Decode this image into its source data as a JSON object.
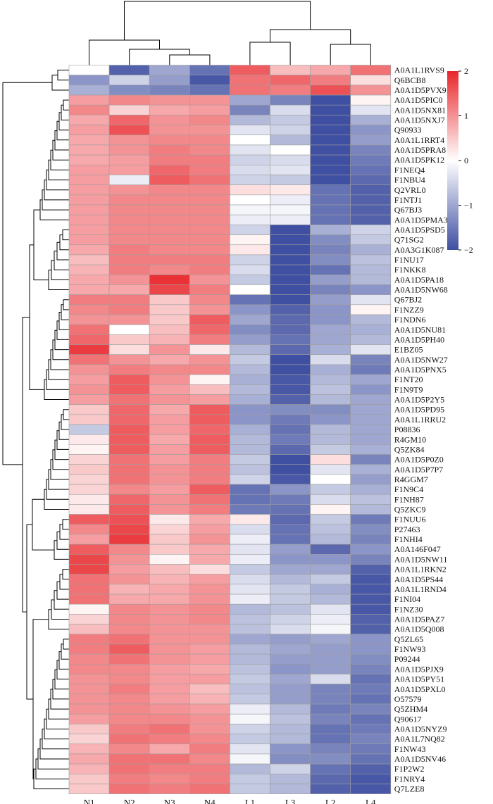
{
  "chart_data": {
    "type": "heatmap",
    "title": "",
    "columns": [
      "N1",
      "N2",
      "N3",
      "N4",
      "L1",
      "L3",
      "L2",
      "L4"
    ],
    "rows": [
      "A0A1L1RVS9",
      "Q6BCB8",
      "A0A1D5PVX9",
      "A0A1D5PIC0",
      "A0A1D5NX81",
      "A0A1D5NXJ7",
      "Q90933",
      "A0A1L1RRT4",
      "A0A1D5PRA8",
      "A0A1D5PK12",
      "F1NEQ4",
      "F1NBU4",
      "Q2VRL0",
      "F1NTJ1",
      "Q67BJ3",
      "A0A1D5PMA3",
      "A0A1D5PSD5",
      "Q71SG2",
      "A0A3G1K087",
      "F1NU17",
      "F1NKK8",
      "A0A1D5PA18",
      "A0A1D5NW68",
      "Q67BJ2",
      "F1NZZ9",
      "F1NDN6",
      "A0A1D5NU81",
      "A0A1D5PH40",
      "E1BZ05",
      "A0A1D5NW27",
      "A0A1D5PNX5",
      "F1NT20",
      "F1N9T9",
      "A0A1D5P2Y5",
      "A0A1D5PD95",
      "A0A1L1RRU2",
      "P08836",
      "R4GM10",
      "Q5ZK84",
      "A0A1D5P0Z0",
      "A0A1D5P7P7",
      "R4GGM7",
      "F1N9C4",
      "F1NH87",
      "Q5ZKC9",
      "F1NUU6",
      "P27463",
      "F1NHI4",
      "A0A146F047",
      "A0A1D5NW11",
      "A0A1L1RKN2",
      "A0A1D5PS44",
      "A0A1L1RND4",
      "F1NI04",
      "F1NZ30",
      "A0A1D5PAZ7",
      "A0A1D5Q008",
      "Q5ZL65",
      "F1NW93",
      "P09244",
      "A0A1D5PJX9",
      "A0A1D5PY51",
      "A0A1D5PXL0",
      "O57579",
      "Q5ZHM4",
      "Q90617",
      "A0A1D5NYZ9",
      "A0A1L7NQ82",
      "F1NW43",
      "A0A1D5NV46",
      "F1P2W2",
      "F1NRY4",
      "Q7LZE8"
    ],
    "values": [
      [
        0.0,
        -1.8,
        -1.0,
        -1.6,
        1.5,
        0.6,
        0.8,
        1.3
      ],
      [
        -1.2,
        -0.5,
        -1.1,
        -1.9,
        1.3,
        1.4,
        1.2,
        0.3
      ],
      [
        -0.9,
        -1.3,
        -1.4,
        -1.6,
        1.3,
        1.2,
        1.6,
        1.0
      ],
      [
        0.9,
        1.1,
        1.0,
        1.0,
        -1.0,
        -1.4,
        -2.0,
        0.1
      ],
      [
        1.1,
        0.4,
        0.8,
        0.9,
        -1.4,
        -0.4,
        -2.0,
        -0.3
      ],
      [
        0.8,
        1.4,
        1.0,
        1.1,
        -0.8,
        -0.6,
        -2.0,
        -0.9
      ],
      [
        0.9,
        1.6,
        1.0,
        1.0,
        -0.3,
        -0.5,
        -2.0,
        -1.2
      ],
      [
        0.8,
        1.0,
        1.1,
        1.1,
        0.0,
        -0.8,
        -2.0,
        -1.1
      ],
      [
        0.8,
        1.0,
        1.2,
        1.1,
        -0.3,
        0.0,
        -2.0,
        -1.4
      ],
      [
        0.8,
        0.9,
        1.2,
        1.2,
        -0.5,
        -0.4,
        -2.0,
        -1.5
      ],
      [
        0.9,
        0.9,
        1.4,
        1.2,
        -0.4,
        -0.3,
        -2.0,
        -1.6
      ],
      [
        0.9,
        -0.2,
        1.5,
        1.3,
        -0.5,
        -0.6,
        -2.0,
        -1.7
      ],
      [
        0.9,
        1.0,
        1.1,
        1.1,
        0.3,
        0.2,
        -1.6,
        -1.8
      ],
      [
        0.9,
        1.1,
        1.1,
        1.1,
        0.0,
        -0.2,
        -1.6,
        -1.8
      ],
      [
        0.9,
        1.1,
        1.1,
        1.1,
        -0.1,
        -0.1,
        -1.6,
        -1.8
      ],
      [
        0.9,
        1.1,
        1.1,
        1.1,
        -0.2,
        -0.2,
        -1.6,
        -1.8
      ],
      [
        0.9,
        1.1,
        1.1,
        1.1,
        -0.5,
        -2.0,
        -0.9,
        -0.5
      ],
      [
        0.9,
        1.1,
        1.1,
        1.1,
        0.1,
        -2.0,
        -1.3,
        -0.6
      ],
      [
        0.8,
        1.2,
        1.1,
        1.1,
        0.2,
        -2.0,
        -1.4,
        -0.9
      ],
      [
        0.6,
        1.2,
        1.2,
        1.2,
        -0.5,
        -2.0,
        -1.3,
        -0.7
      ],
      [
        0.7,
        1.2,
        1.1,
        1.2,
        -0.4,
        -2.0,
        -1.6,
        -0.8
      ],
      [
        0.8,
        1.0,
        1.9,
        1.0,
        -0.6,
        -2.0,
        -1.1,
        -0.8
      ],
      [
        0.8,
        0.8,
        1.7,
        1.2,
        0.0,
        -2.0,
        -1.4,
        -1.2
      ],
      [
        1.2,
        1.2,
        0.5,
        1.1,
        -1.6,
        -2.0,
        -1.1,
        -0.3
      ],
      [
        1.1,
        1.2,
        0.5,
        1.0,
        -1.2,
        -1.8,
        -1.2,
        0.1
      ],
      [
        1.0,
        1.0,
        0.5,
        1.5,
        -1.0,
        -1.7,
        -1.2,
        -0.8
      ],
      [
        1.3,
        0.0,
        0.6,
        1.4,
        -1.3,
        -1.7,
        -1.0,
        -0.9
      ],
      [
        1.4,
        0.5,
        0.7,
        1.2,
        -1.1,
        -1.6,
        -1.0,
        -0.8
      ],
      [
        1.8,
        0.3,
        1.0,
        0.2,
        -0.8,
        -1.7,
        -0.9,
        -0.3
      ],
      [
        1.3,
        1.0,
        0.8,
        1.0,
        -0.6,
        -2.0,
        -0.4,
        -1.4
      ],
      [
        1.0,
        1.2,
        1.1,
        1.1,
        -0.8,
        -2.0,
        -0.9,
        -1.5
      ],
      [
        0.9,
        1.5,
        1.0,
        0.1,
        -0.9,
        -1.9,
        -0.8,
        -1.0
      ],
      [
        1.0,
        1.5,
        0.9,
        0.6,
        -0.8,
        -1.9,
        -0.7,
        -1.2
      ],
      [
        0.9,
        1.3,
        1.0,
        0.9,
        -0.9,
        -1.8,
        -0.8,
        -1.0
      ],
      [
        0.5,
        1.4,
        0.8,
        1.5,
        -1.2,
        -1.3,
        -1.3,
        -1.0
      ],
      [
        0.5,
        1.4,
        0.9,
        1.5,
        -1.2,
        -1.5,
        -1.2,
        -1.0
      ],
      [
        -0.6,
        1.5,
        0.9,
        1.4,
        -0.9,
        -1.6,
        -0.8,
        -1.0
      ],
      [
        0.2,
        1.5,
        0.8,
        1.5,
        -0.8,
        -1.5,
        -0.8,
        -1.0
      ],
      [
        0.1,
        1.5,
        0.9,
        1.5,
        -0.8,
        -1.7,
        -0.6,
        -0.9
      ],
      [
        0.4,
        1.3,
        0.9,
        1.2,
        -0.6,
        -2.0,
        0.3,
        -1.4
      ],
      [
        0.5,
        1.3,
        1.0,
        1.2,
        -0.7,
        -2.0,
        -0.3,
        -0.9
      ],
      [
        0.4,
        1.3,
        1.0,
        1.2,
        -0.5,
        -1.9,
        0.0,
        -1.1
      ],
      [
        0.4,
        1.1,
        0.9,
        1.5,
        -1.6,
        -1.2,
        -0.6,
        -0.9
      ],
      [
        0.2,
        1.4,
        1.0,
        1.3,
        -1.6,
        -1.5,
        -0.4,
        -0.7
      ],
      [
        0.2,
        1.5,
        1.0,
        1.2,
        -1.5,
        -1.6,
        0.1,
        -0.8
      ],
      [
        1.5,
        1.6,
        0.2,
        0.8,
        0.2,
        -1.7,
        -0.6,
        -1.5
      ],
      [
        1.1,
        1.7,
        0.4,
        0.9,
        -0.4,
        -1.6,
        -0.7,
        -1.3
      ],
      [
        0.9,
        1.8,
        0.5,
        1.0,
        -0.2,
        -1.6,
        -0.8,
        -1.4
      ],
      [
        1.5,
        1.1,
        0.5,
        0.8,
        -0.3,
        -1.1,
        -1.7,
        -1.2
      ],
      [
        1.7,
        1.0,
        0.1,
        0.8,
        -0.2,
        -1.2,
        -1.2,
        -1.4
      ],
      [
        1.7,
        0.9,
        0.6,
        0.3,
        -0.6,
        -1.0,
        -1.0,
        -1.8
      ],
      [
        1.3,
        1.0,
        0.7,
        0.9,
        -0.4,
        -0.8,
        -0.6,
        -1.9
      ],
      [
        1.3,
        0.7,
        0.8,
        1.0,
        -0.3,
        -0.6,
        -0.9,
        -1.9
      ],
      [
        1.3,
        0.8,
        0.8,
        1.0,
        -0.2,
        -0.6,
        -0.8,
        -1.9
      ],
      [
        0.1,
        1.1,
        1.0,
        1.1,
        -0.8,
        -0.7,
        -0.3,
        -1.9
      ],
      [
        0.4,
        1.1,
        1.0,
        1.1,
        -0.7,
        -0.5,
        -0.2,
        -1.8
      ],
      [
        0.6,
        1.1,
        1.0,
        1.0,
        -0.7,
        -0.4,
        -0.1,
        -1.8
      ],
      [
        1.2,
        1.3,
        1.0,
        1.0,
        -1.0,
        -1.1,
        -1.0,
        -1.2
      ],
      [
        1.2,
        1.5,
        1.0,
        0.9,
        -0.8,
        -1.0,
        -1.1,
        -1.2
      ],
      [
        1.1,
        1.3,
        1.0,
        0.9,
        -0.8,
        -1.1,
        -1.1,
        -1.3
      ],
      [
        1.1,
        1.1,
        0.9,
        0.8,
        -0.7,
        -1.2,
        -1.1,
        -1.4
      ],
      [
        1.0,
        1.1,
        0.9,
        0.9,
        -0.6,
        -1.0,
        -0.4,
        -1.6
      ],
      [
        1.0,
        1.2,
        0.9,
        0.6,
        -0.7,
        -1.1,
        -1.4,
        -1.5
      ],
      [
        1.0,
        1.1,
        0.9,
        0.7,
        -0.6,
        -1.1,
        -1.4,
        -1.6
      ],
      [
        1.0,
        1.1,
        1.0,
        0.9,
        -0.2,
        -0.8,
        -1.5,
        -1.4
      ],
      [
        0.9,
        1.1,
        1.1,
        1.0,
        -0.1,
        -0.7,
        -1.4,
        -1.6
      ],
      [
        0.5,
        1.2,
        1.3,
        1.0,
        -0.5,
        -0.8,
        -1.6,
        -1.5
      ],
      [
        0.4,
        1.3,
        1.2,
        1.1,
        -0.6,
        -0.8,
        -1.6,
        -1.4
      ],
      [
        0.7,
        1.1,
        0.8,
        1.2,
        -0.3,
        -1.2,
        -1.4,
        -1.5
      ],
      [
        0.8,
        1.3,
        1.3,
        1.1,
        -0.1,
        -1.3,
        -1.3,
        -1.6
      ],
      [
        0.7,
        1.3,
        1.2,
        1.2,
        -0.8,
        -0.5,
        -1.6,
        -1.8
      ],
      [
        0.5,
        1.2,
        1.1,
        1.2,
        -0.6,
        -0.8,
        -1.7,
        -1.9
      ],
      [
        0.5,
        1.3,
        1.2,
        1.3,
        -0.6,
        -0.8,
        -1.8,
        -1.9
      ]
    ],
    "color_scale": {
      "min": -2,
      "mid": 0,
      "max": 2,
      "low_color": "#3f4fa1",
      "mid_color": "#ffffff",
      "high_color": "#e8262b",
      "ticks": [
        2,
        1,
        0,
        -1,
        -2
      ],
      "tick_labels": [
        "2",
        "1",
        "0",
        "−1",
        "−2"
      ]
    },
    "dendrogram": {
      "columns": "((N1,(N2,(N3,N4))),((L1,L3),(L2,L4)))",
      "rows": "hierarchical clustering on row features"
    },
    "legend_position": "top-right"
  }
}
